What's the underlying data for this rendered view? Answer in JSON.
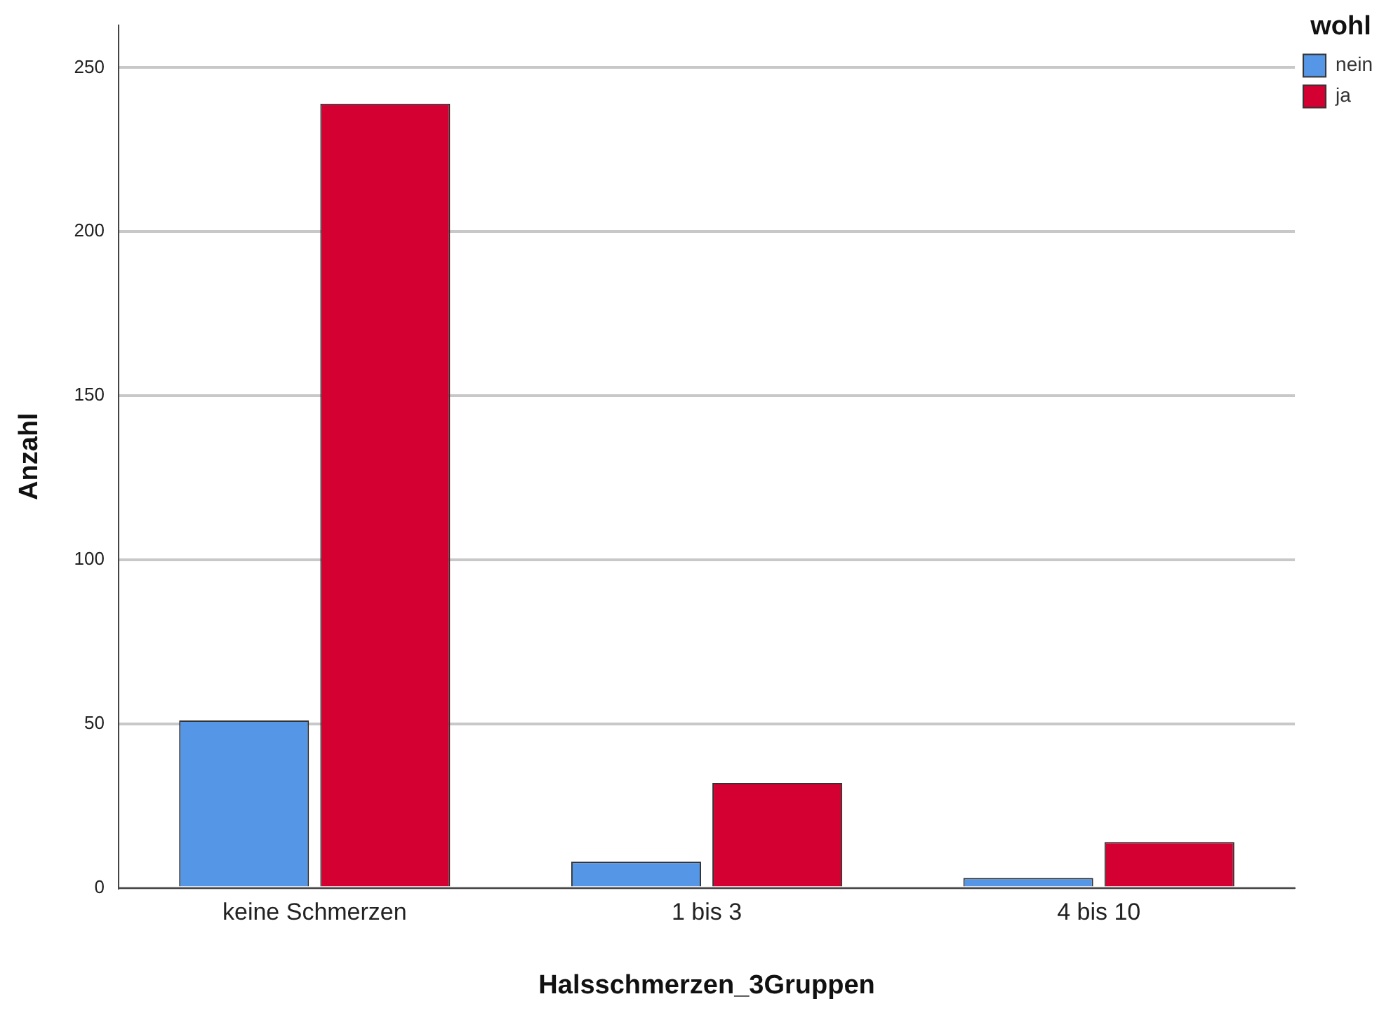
{
  "chart_data": {
    "type": "bar",
    "xlabel": "Halsschmerzen_3Gruppen",
    "ylabel": "Anzahl",
    "legend_title": "wohl",
    "categories": [
      "keine Schmerzen",
      "1 bis 3",
      "4 bis 10"
    ],
    "series": [
      {
        "name": "nein",
        "color": "#5596e6",
        "values": [
          51,
          8,
          3
        ]
      },
      {
        "name": "ja",
        "color": "#d50032",
        "values": [
          239,
          32,
          14
        ]
      }
    ],
    "ylim": [
      0,
      263
    ],
    "yticks": [
      0,
      50,
      100,
      150,
      200,
      250
    ],
    "grid": "y",
    "legend": "top right"
  }
}
